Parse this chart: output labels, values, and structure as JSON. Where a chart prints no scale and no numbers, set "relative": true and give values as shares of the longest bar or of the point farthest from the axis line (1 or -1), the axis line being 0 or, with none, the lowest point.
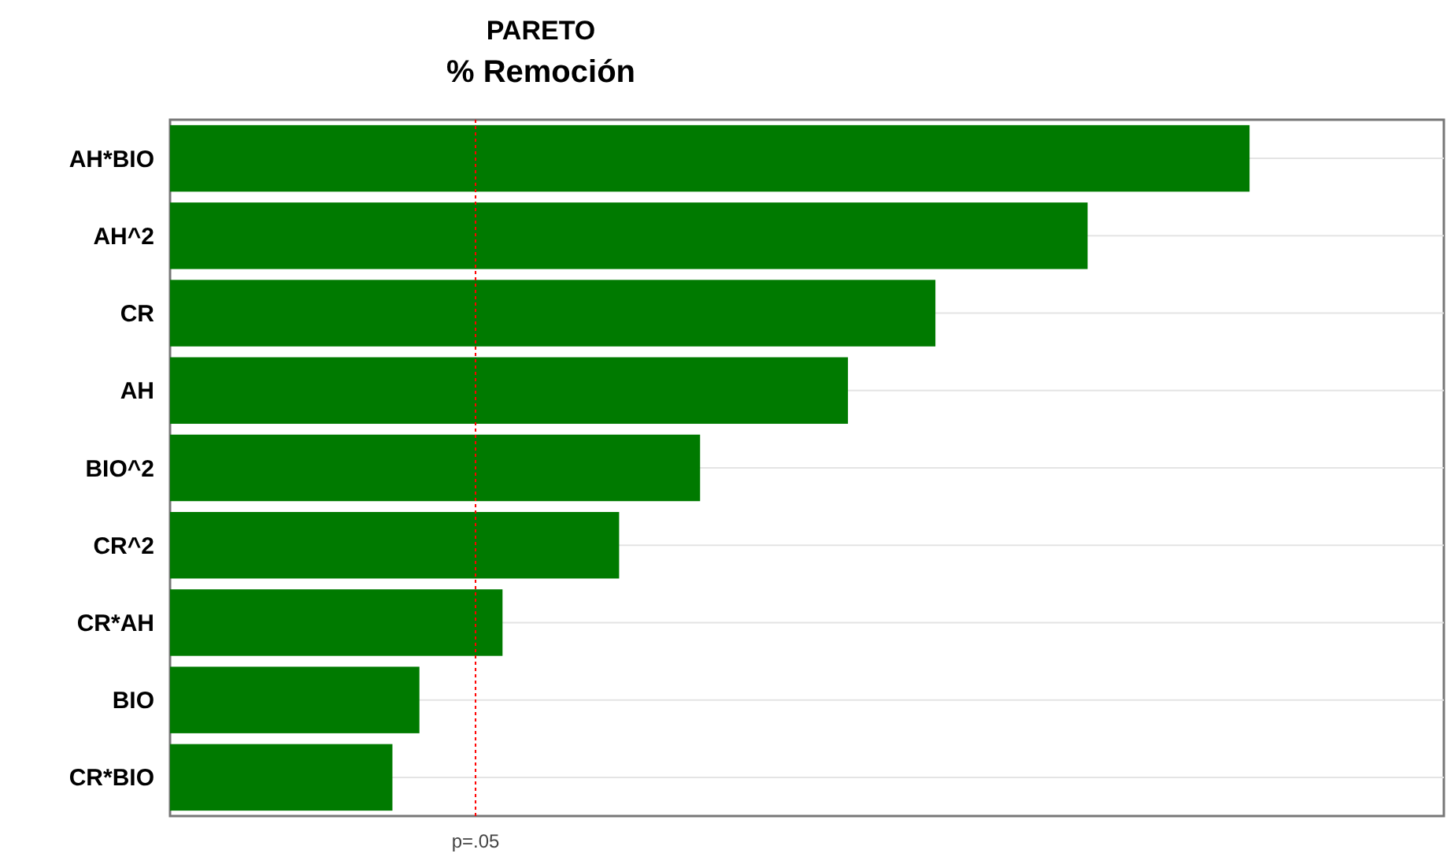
{
  "chart_data": {
    "type": "bar",
    "orientation": "horizontal",
    "relative": true,
    "title": "PARETO",
    "subtitle": "% Remoción",
    "categories": [
      "AH*BIO",
      "AH^2",
      "CR",
      "AH",
      "BIO^2",
      "CR^2",
      "CR*AH",
      "BIO",
      "CR*BIO"
    ],
    "values": [
      1,
      0.85,
      0.709,
      0.628,
      0.491,
      0.416,
      0.308,
      0.231,
      0.206
    ],
    "color": "#007a00",
    "ref_lines": [
      {
        "axis": "x",
        "value": 0.283,
        "label": "p=.05",
        "color": "#ff0000",
        "line_style": "dotted"
      }
    ],
    "grid": "y"
  }
}
